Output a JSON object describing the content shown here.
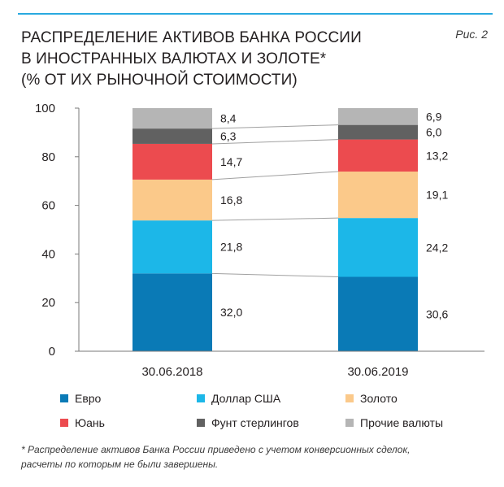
{
  "figure_label": "Рис. 2",
  "title_lines": [
    "РАСПРЕДЕЛЕНИЕ АКТИВОВ БАНКА РОССИИ",
    "В ИНОСТРАННЫХ ВАЛЮТАХ И ЗОЛОТЕ*",
    "(% ОТ ИХ РЫНОЧНОЙ СТОИМОСТИ)"
  ],
  "footnote_lines": [
    "* Распределение активов Банка России приведено с учетом конверсионных сделок,",
    "расчеты по которым не были завершены."
  ],
  "colors": {
    "euro": "#0a7ab6",
    "usd": "#1cb7e8",
    "gold": "#fbc98a",
    "yuan": "#ec4b4f",
    "gbp": "#616161",
    "other": "#b5b5b5",
    "connector": "#a0a0a0",
    "axis": "#7a7a7a"
  },
  "chart_data": {
    "type": "bar",
    "stacked": true,
    "categories": [
      "30.06.2018",
      "30.06.2019"
    ],
    "ylim": [
      0,
      100
    ],
    "yticks": [
      0,
      20,
      40,
      60,
      80,
      100
    ],
    "series": [
      {
        "key": "euro",
        "name": "Евро",
        "values": [
          32.0,
          30.6
        ],
        "labels": [
          "32,0",
          "30,6"
        ]
      },
      {
        "key": "usd",
        "name": "Доллар США",
        "values": [
          21.8,
          24.2
        ],
        "labels": [
          "21,8",
          "24,2"
        ]
      },
      {
        "key": "gold",
        "name": "Золото",
        "values": [
          16.8,
          19.1
        ],
        "labels": [
          "16,8",
          "19,1"
        ]
      },
      {
        "key": "yuan",
        "name": "Юань",
        "values": [
          14.7,
          13.2
        ],
        "labels": [
          "14,7",
          "13,2"
        ]
      },
      {
        "key": "gbp",
        "name": "Фунт стерлингов",
        "values": [
          6.3,
          6.0
        ],
        "labels": [
          "6,3",
          "6,0"
        ]
      },
      {
        "key": "other",
        "name": "Прочие валюты",
        "values": [
          8.4,
          6.9
        ],
        "labels": [
          "8,4",
          "6,9"
        ]
      }
    ],
    "legend_position": "bottom",
    "grid": false
  }
}
